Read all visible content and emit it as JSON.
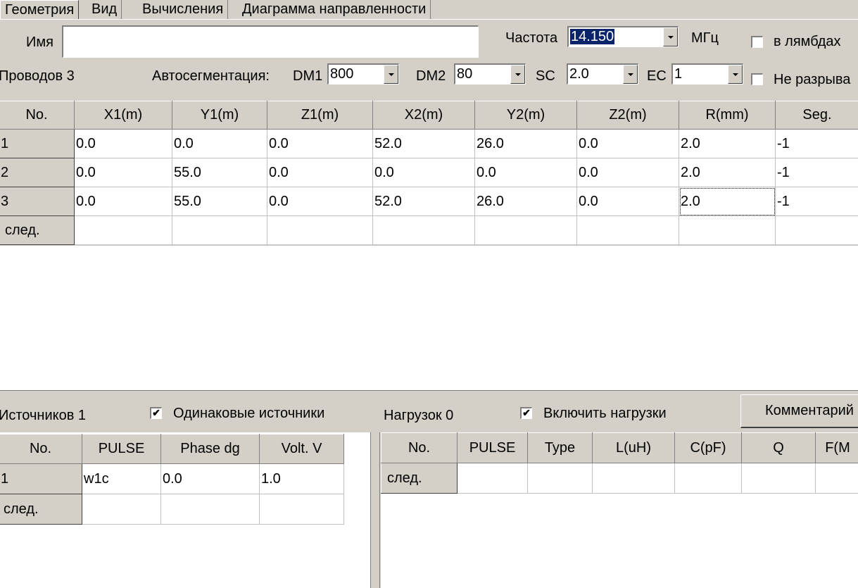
{
  "tabs": [
    "Геометрия",
    "Вид",
    "Вычисления",
    "Диаграмма направленности"
  ],
  "name": {
    "label": "Имя",
    "value": ""
  },
  "freq": {
    "label": "Частота",
    "value": "14.150",
    "unit": "МГц"
  },
  "lambda_label": "в лямбдах",
  "no_break_label": "Не разрыва",
  "wires_label": "Проводов 3",
  "autoseg_label": "Автосегментация:",
  "dm1": {
    "label": "DM1",
    "value": "800"
  },
  "dm2": {
    "label": "DM2",
    "value": "80"
  },
  "sc": {
    "label": "SC",
    "value": "2.0"
  },
  "ec": {
    "label": "EC",
    "value": "1"
  },
  "wire_table": {
    "headers": [
      "No.",
      "X1(m)",
      "Y1(m)",
      "Z1(m)",
      "X2(m)",
      "Y2(m)",
      "Z2(m)",
      "R(mm)",
      "Seg."
    ],
    "rows": [
      [
        "1",
        "0.0",
        "0.0",
        "0.0",
        "52.0",
        "26.0",
        "0.0",
        "2.0",
        "-1"
      ],
      [
        "2",
        "0.0",
        "55.0",
        "0.0",
        "0.0",
        "0.0",
        "0.0",
        "2.0",
        "-1"
      ],
      [
        "3",
        "0.0",
        "55.0",
        "0.0",
        "52.0",
        "26.0",
        "0.0",
        "2.0",
        "-1"
      ]
    ],
    "next_label": "след."
  },
  "sources": {
    "label": "Источников 1",
    "same_label": "Одинаковые источники",
    "same_checked": true,
    "headers": [
      "No.",
      "PULSE",
      "Phase dg",
      "Volt. V"
    ],
    "rows": [
      [
        "1",
        "w1c",
        "0.0",
        "1.0"
      ]
    ],
    "next_label": "след."
  },
  "loads": {
    "label": "Нагрузок 0",
    "enable_label": "Включить нагрузки",
    "enable_checked": true,
    "comment_button": "Комментарий",
    "headers": [
      "No.",
      "PULSE",
      "Type",
      "L(uH)",
      "C(pF)",
      "Q",
      "F(M"
    ],
    "next_label": "след."
  }
}
